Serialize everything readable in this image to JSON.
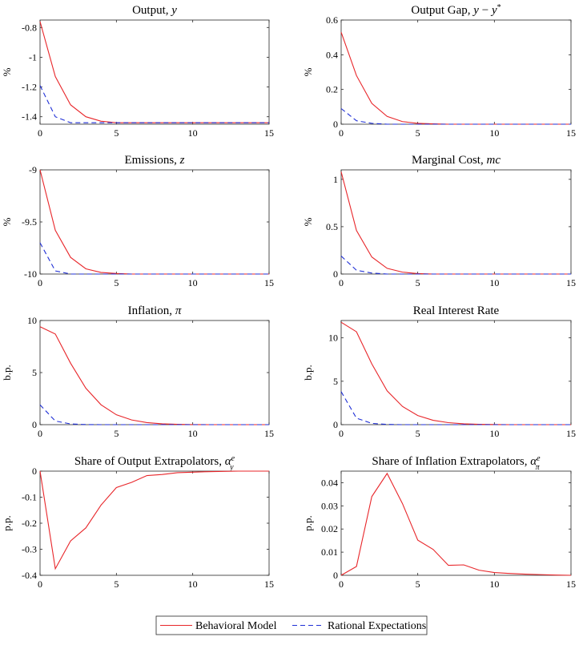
{
  "legend": {
    "entries": [
      {
        "label": "Behavioral Model",
        "color": "#e8262a",
        "dash": "solid"
      },
      {
        "label": "Rational Expectations",
        "color": "#1f2fd6",
        "dash": "dashed"
      }
    ],
    "placement": "bottom-center"
  },
  "chart_data": [
    {
      "type": "line",
      "title": "Output, y",
      "title_parts": [
        {
          "t": "Output, "
        },
        {
          "t": "y",
          "i": true
        }
      ],
      "xlabel": "",
      "ylabel": "%",
      "xlim": [
        0,
        15
      ],
      "ylim": [
        -1.45,
        -0.75
      ],
      "xticks": [
        0,
        5,
        10,
        15
      ],
      "yticks": [
        -0.8,
        -1,
        -1.2,
        -1.4
      ],
      "ytick_labels": [
        "-0.8",
        "-1",
        "-1.2",
        "-1.4"
      ],
      "grid": false,
      "x": [
        0,
        1,
        2,
        3,
        4,
        5,
        6,
        7,
        8,
        9,
        10,
        11,
        12,
        13,
        14,
        15
      ],
      "series": [
        {
          "name": "Behavioral Model",
          "color": "#e8262a",
          "dash": "solid",
          "values": [
            -0.76,
            -1.13,
            -1.32,
            -1.4,
            -1.43,
            -1.44,
            -1.44,
            -1.44,
            -1.44,
            -1.44,
            -1.44,
            -1.44,
            -1.44,
            -1.44,
            -1.44,
            -1.44
          ]
        },
        {
          "name": "Rational Expectations",
          "color": "#1f2fd6",
          "dash": "dashed",
          "values": [
            -1.19,
            -1.4,
            -1.44,
            -1.44,
            -1.44,
            -1.44,
            -1.44,
            -1.44,
            -1.44,
            -1.44,
            -1.44,
            -1.44,
            -1.44,
            -1.44,
            -1.44,
            -1.44
          ]
        }
      ]
    },
    {
      "type": "line",
      "title": "Output Gap, y − y*",
      "title_parts": [
        {
          "t": "Output Gap, "
        },
        {
          "t": "y",
          "i": true
        },
        {
          "t": " − "
        },
        {
          "t": "y",
          "i": true
        },
        {
          "t": "*",
          "sup": true
        }
      ],
      "xlabel": "",
      "ylabel": "%",
      "xlim": [
        0,
        15
      ],
      "ylim": [
        0,
        0.6
      ],
      "xticks": [
        0,
        5,
        10,
        15
      ],
      "yticks": [
        0,
        0.2,
        0.4,
        0.6
      ],
      "ytick_labels": [
        "0",
        "0.2",
        "0.4",
        "0.6"
      ],
      "grid": false,
      "x": [
        0,
        1,
        2,
        3,
        4,
        5,
        6,
        7,
        8,
        9,
        10,
        11,
        12,
        13,
        14,
        15
      ],
      "series": [
        {
          "name": "Behavioral Model",
          "color": "#e8262a",
          "dash": "solid",
          "values": [
            0.53,
            0.28,
            0.12,
            0.045,
            0.015,
            0.005,
            0.002,
            0,
            0,
            0,
            0,
            0,
            0,
            0,
            0,
            0
          ]
        },
        {
          "name": "Rational Expectations",
          "color": "#1f2fd6",
          "dash": "dashed",
          "values": [
            0.09,
            0.02,
            0.005,
            0,
            0,
            0,
            0,
            0,
            0,
            0,
            0,
            0,
            0,
            0,
            0,
            0
          ]
        }
      ]
    },
    {
      "type": "line",
      "title": "Emissions, z",
      "title_parts": [
        {
          "t": "Emissions, "
        },
        {
          "t": "z",
          "i": true
        }
      ],
      "xlabel": "",
      "ylabel": "%",
      "xlim": [
        0,
        15
      ],
      "ylim": [
        -10,
        -9
      ],
      "xticks": [
        0,
        5,
        10,
        15
      ],
      "yticks": [
        -9,
        -9.5,
        -10
      ],
      "ytick_labels": [
        "-9",
        "-9.5",
        "-10"
      ],
      "grid": false,
      "x": [
        0,
        1,
        2,
        3,
        4,
        5,
        6,
        7,
        8,
        9,
        10,
        11,
        12,
        13,
        14,
        15
      ],
      "series": [
        {
          "name": "Behavioral Model",
          "color": "#e8262a",
          "dash": "solid",
          "values": [
            -9.0,
            -9.58,
            -9.84,
            -9.95,
            -9.985,
            -9.995,
            -10,
            -10,
            -10,
            -10,
            -10,
            -10,
            -10,
            -10,
            -10,
            -10
          ]
        },
        {
          "name": "Rational Expectations",
          "color": "#1f2fd6",
          "dash": "dashed",
          "values": [
            -9.7,
            -9.97,
            -10,
            -10,
            -10,
            -10,
            -10,
            -10,
            -10,
            -10,
            -10,
            -10,
            -10,
            -10,
            -10,
            -10
          ]
        }
      ]
    },
    {
      "type": "line",
      "title": "Marginal Cost, mc",
      "title_parts": [
        {
          "t": "Marginal Cost, "
        },
        {
          "t": "mc",
          "i": true
        }
      ],
      "xlabel": "",
      "ylabel": "%",
      "xlim": [
        0,
        15
      ],
      "ylim": [
        0,
        1.1
      ],
      "xticks": [
        0,
        5,
        10,
        15
      ],
      "yticks": [
        0,
        0.5,
        1
      ],
      "ytick_labels": [
        "0",
        "0.5",
        "1"
      ],
      "grid": false,
      "x": [
        0,
        1,
        2,
        3,
        4,
        5,
        6,
        7,
        8,
        9,
        10,
        11,
        12,
        13,
        14,
        15
      ],
      "series": [
        {
          "name": "Behavioral Model",
          "color": "#e8262a",
          "dash": "solid",
          "values": [
            1.08,
            0.46,
            0.18,
            0.06,
            0.02,
            0.005,
            0,
            0,
            0,
            0,
            0,
            0,
            0,
            0,
            0,
            0
          ]
        },
        {
          "name": "Rational Expectations",
          "color": "#1f2fd6",
          "dash": "dashed",
          "values": [
            0.19,
            0.04,
            0.01,
            0,
            0,
            0,
            0,
            0,
            0,
            0,
            0,
            0,
            0,
            0,
            0,
            0
          ]
        }
      ]
    },
    {
      "type": "line",
      "title": "Inflation, π",
      "title_parts": [
        {
          "t": "Inflation, "
        },
        {
          "t": "π",
          "i": true
        }
      ],
      "xlabel": "",
      "ylabel": "b.p.",
      "xlim": [
        0,
        15
      ],
      "ylim": [
        0,
        10
      ],
      "xticks": [
        0,
        5,
        10,
        15
      ],
      "yticks": [
        0,
        5,
        10
      ],
      "ytick_labels": [
        "0",
        "5",
        "10"
      ],
      "grid": false,
      "x": [
        0,
        1,
        2,
        3,
        4,
        5,
        6,
        7,
        8,
        9,
        10,
        11,
        12,
        13,
        14,
        15
      ],
      "series": [
        {
          "name": "Behavioral Model",
          "color": "#e8262a",
          "dash": "solid",
          "values": [
            9.4,
            8.7,
            5.9,
            3.5,
            1.9,
            0.95,
            0.45,
            0.2,
            0.08,
            0.03,
            0.01,
            0,
            0,
            0,
            0,
            0
          ]
        },
        {
          "name": "Rational Expectations",
          "color": "#1f2fd6",
          "dash": "dashed",
          "values": [
            1.9,
            0.35,
            0.07,
            0.01,
            0,
            0,
            0,
            0,
            0,
            0,
            0,
            0,
            0,
            0,
            0,
            0
          ]
        }
      ]
    },
    {
      "type": "line",
      "title": "Real Interest Rate",
      "title_parts": [
        {
          "t": "Real Interest Rate"
        }
      ],
      "xlabel": "",
      "ylabel": "b.p.",
      "xlim": [
        0,
        15
      ],
      "ylim": [
        0,
        12
      ],
      "xticks": [
        0,
        5,
        10,
        15
      ],
      "yticks": [
        0,
        5,
        10
      ],
      "ytick_labels": [
        "0",
        "5",
        "10"
      ],
      "grid": false,
      "x": [
        0,
        1,
        2,
        3,
        4,
        5,
        6,
        7,
        8,
        9,
        10,
        11,
        12,
        13,
        14,
        15
      ],
      "series": [
        {
          "name": "Behavioral Model",
          "color": "#e8262a",
          "dash": "solid",
          "values": [
            11.8,
            10.7,
            7.0,
            3.9,
            2.1,
            1.05,
            0.5,
            0.23,
            0.1,
            0.04,
            0.015,
            0,
            0,
            0,
            0,
            0
          ]
        },
        {
          "name": "Rational Expectations",
          "color": "#1f2fd6",
          "dash": "dashed",
          "values": [
            3.8,
            0.75,
            0.15,
            0.03,
            0,
            0,
            0,
            0,
            0,
            0,
            0,
            0,
            0,
            0,
            0,
            0
          ]
        }
      ]
    },
    {
      "type": "line",
      "title": "Share of Output Extrapolators, α_y^e",
      "title_parts": [
        {
          "t": "Share of Output Extrapolators, "
        },
        {
          "t": "α",
          "i": true
        },
        {
          "t": "e",
          "sup": true,
          "i": true
        },
        {
          "t": "y",
          "sub": true,
          "i": true
        }
      ],
      "xlabel": "",
      "ylabel": "p.p.",
      "xlim": [
        0,
        15
      ],
      "ylim": [
        -0.4,
        0
      ],
      "xticks": [
        0,
        5,
        10,
        15
      ],
      "yticks": [
        0,
        -0.1,
        -0.2,
        -0.3,
        -0.4
      ],
      "ytick_labels": [
        "0",
        "-0.1",
        "-0.2",
        "-0.3",
        "-0.4"
      ],
      "grid": false,
      "x": [
        0,
        1,
        2,
        3,
        4,
        5,
        6,
        7,
        8,
        9,
        10,
        11,
        12,
        13,
        14,
        15
      ],
      "series": [
        {
          "name": "Behavioral Model",
          "color": "#e8262a",
          "dash": "solid",
          "values": [
            0,
            -0.375,
            -0.268,
            -0.218,
            -0.13,
            -0.063,
            -0.043,
            -0.017,
            -0.013,
            -0.006,
            -0.004,
            -0.002,
            -0.001,
            0,
            0,
            0
          ]
        }
      ]
    },
    {
      "type": "line",
      "title": "Share of Inflation Extrapolators, α_π^e",
      "title_parts": [
        {
          "t": "Share of Inflation Extrapolators, "
        },
        {
          "t": "α",
          "i": true
        },
        {
          "t": "e",
          "sup": true,
          "i": true
        },
        {
          "t": "π",
          "sub": true,
          "i": true
        }
      ],
      "xlabel": "",
      "ylabel": "p.p.",
      "xlim": [
        0,
        15
      ],
      "ylim": [
        0,
        0.045
      ],
      "xticks": [
        0,
        5,
        10,
        15
      ],
      "yticks": [
        0,
        0.01,
        0.02,
        0.03,
        0.04
      ],
      "ytick_labels": [
        "0",
        "0.01",
        "0.02",
        "0.03",
        "0.04"
      ],
      "grid": false,
      "x": [
        0,
        1,
        2,
        3,
        4,
        5,
        6,
        7,
        8,
        9,
        10,
        11,
        12,
        13,
        14,
        15
      ],
      "series": [
        {
          "name": "Behavioral Model",
          "color": "#e8262a",
          "dash": "solid",
          "values": [
            0,
            0.0038,
            0.034,
            0.044,
            0.031,
            0.0152,
            0.0112,
            0.0043,
            0.0045,
            0.0022,
            0.0012,
            0.0008,
            0.0005,
            0.0003,
            0.0001,
            0
          ]
        }
      ]
    }
  ]
}
